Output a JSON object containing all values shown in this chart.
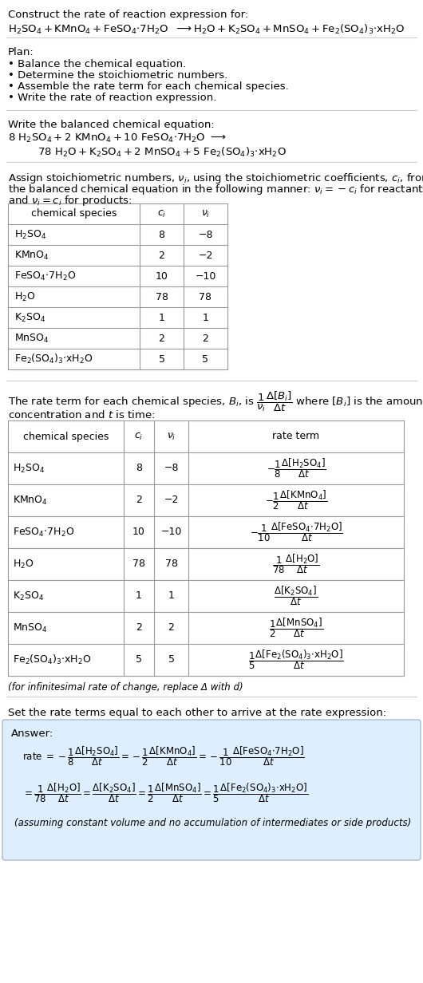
{
  "title_line1": "Construct the rate of reaction expression for:",
  "plan_header": "Plan:",
  "plan_items": [
    "• Balance the chemical equation.",
    "• Determine the stoichiometric numbers.",
    "• Assemble the rate term for each chemical species.",
    "• Write the rate of reaction expression."
  ],
  "balanced_header": "Write the balanced chemical equation:",
  "stoich_intro1": "Assign stoichiometric numbers, νᵢ, using the stoichiometric coefficients, cᵢ, from",
  "stoich_intro2": "the balanced chemical equation in the following manner: νᵢ = −cᵢ for reactants",
  "stoich_intro3": "and νᵢ = cᵢ for products:",
  "table1_rows": [
    [
      "H₂SO₄",
      "8",
      "−8"
    ],
    [
      "KMnO₄",
      "2",
      "−2"
    ],
    [
      "FeSO₄·7H₂O",
      "10",
      "−10"
    ],
    [
      "H₂O",
      "78",
      "78"
    ],
    [
      "K₂SO₄",
      "1",
      "1"
    ],
    [
      "MnSO₄",
      "2",
      "2"
    ],
    [
      "Fe₂(SO₄)₃·xH₂O",
      "5",
      "5"
    ]
  ],
  "rate_intro1": "The rate term for each chemical species, Bᵢ, is",
  "rate_intro2": " where [Bᵢ] is the amount",
  "rate_intro3": "concentration and t is time:",
  "infinitesimal_note": "(for infinitesimal rate of change, replace Δ with d)",
  "rate_expr_header": "Set the rate terms equal to each other to arrive at the rate expression:",
  "answer_label": "Answer:",
  "answer_note": "(assuming constant volume and no accumulation of intermediates or side products)",
  "answer_box_color": "#ddeeff",
  "answer_box_border": "#aabbcc",
  "bg_color": "#ffffff",
  "text_color": "#000000",
  "table_line_color": "#999999",
  "hline_color": "#cccccc"
}
